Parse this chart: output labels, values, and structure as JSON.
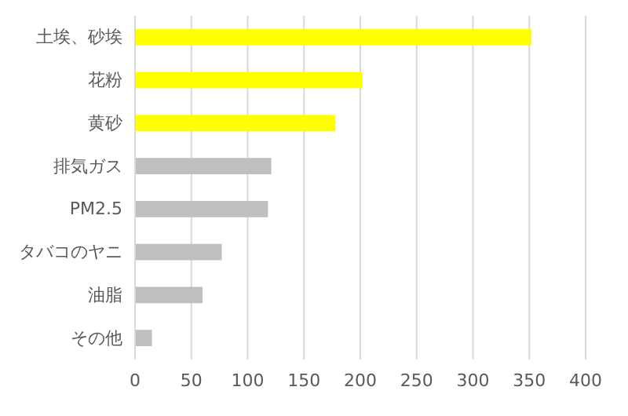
{
  "chart_data": {
    "type": "bar",
    "orientation": "horizontal",
    "categories": [
      "土埃、砂埃",
      "花粉",
      "黄砂",
      "排気ガス",
      "PM2.5",
      "タバコのヤニ",
      "油脂",
      "その他"
    ],
    "values": [
      352,
      202,
      178,
      121,
      118,
      77,
      60,
      15
    ],
    "colors": [
      "#ffff00",
      "#ffff00",
      "#ffff00",
      "#bfbfbf",
      "#bfbfbf",
      "#bfbfbf",
      "#bfbfbf",
      "#bfbfbf"
    ],
    "xlim": [
      0,
      400
    ],
    "xticks": [
      0,
      50,
      100,
      150,
      200,
      250,
      300,
      350,
      400
    ],
    "grid": "x"
  }
}
